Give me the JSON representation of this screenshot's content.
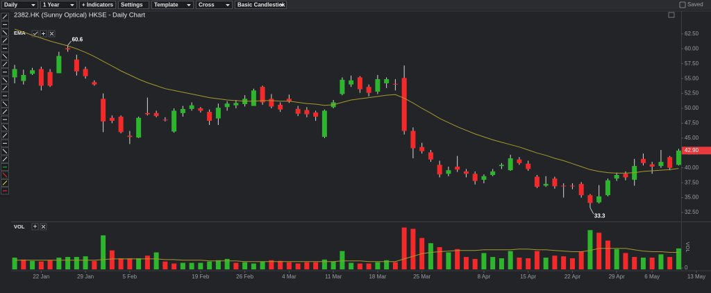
{
  "toolbar": {
    "buttons": [
      "Daily",
      "1 Year",
      "+ Indicators",
      "Settings",
      "Template",
      "Cross",
      "Basic Candlestick"
    ],
    "status": "Saved"
  },
  "chart_data": {
    "type": "candlestick",
    "title": "2382.HK (Sunny Optical) HKSE - Daily Chart",
    "up_color": "#2db52d",
    "down_color": "#f42a2a",
    "xlim": [
      -0.4,
      75.2
    ],
    "xticks": [
      {
        "value": 3,
        "label": "22 Jan"
      },
      {
        "value": 8,
        "label": "29 Jan"
      },
      {
        "value": 13,
        "label": "5 Feb"
      },
      {
        "value": 21,
        "label": "19 Feb"
      },
      {
        "value": 26,
        "label": "26 Feb"
      },
      {
        "value": 31,
        "label": "4 Mar"
      },
      {
        "value": 36,
        "label": "11 Mar"
      },
      {
        "value": 41,
        "label": "18 Mar"
      },
      {
        "value": 46,
        "label": "25 Mar"
      },
      {
        "value": 53,
        "label": "8 Apr"
      },
      {
        "value": 58,
        "label": "15 Apr"
      },
      {
        "value": 63,
        "label": "22 Apr"
      },
      {
        "value": 68,
        "label": "29 Apr"
      },
      {
        "value": 72,
        "label": "6 May"
      },
      {
        "value": 77,
        "label": "13 May"
      }
    ],
    "ylim": [
      31.1,
      64.7
    ],
    "yticks": [
      {
        "value": 32.5,
        "label": "32.50"
      },
      {
        "value": 35,
        "label": "35.00"
      },
      {
        "value": 37.5,
        "label": "37.50"
      },
      {
        "value": 40,
        "label": "40.00"
      },
      {
        "value": 42.5,
        "label": "42.50"
      },
      {
        "value": 45,
        "label": "45.00"
      },
      {
        "value": 47.5,
        "label": "47.50"
      },
      {
        "value": 50,
        "label": "50.00"
      },
      {
        "value": 52.5,
        "label": "52.50"
      },
      {
        "value": 55,
        "label": "55.00"
      },
      {
        "value": 57.5,
        "label": "57.50"
      },
      {
        "value": 60,
        "label": "60.00"
      },
      {
        "value": 62.5,
        "label": "62.50"
      }
    ],
    "open": [
      55.2,
      54.6,
      55.8,
      56.6,
      56.1,
      55.9,
      60.1,
      58.2,
      56.6,
      54.4,
      51.6,
      48.4,
      48.6,
      45.4,
      45.1,
      49.2,
      49.2,
      48.1,
      46.1,
      49.2,
      49.9,
      50.0,
      49.4,
      48.3,
      50.2,
      50.5,
      50.7,
      50.4,
      53.6,
      51.6,
      50.6,
      51.6,
      49.9,
      49.7,
      49.3,
      45.2,
      50.2,
      52.4,
      54.0,
      55.2,
      53.6,
      52.8,
      54.2,
      54.1,
      55.1,
      46.2,
      43.5,
      42.6,
      40.5,
      39.0,
      40.2,
      39.4,
      39.0,
      38.0,
      38.8,
      40.3,
      39.6,
      41.4,
      40.7,
      38.5,
      37.0,
      38.2,
      37.0,
      37.0,
      37.3,
      35.4,
      34.2,
      35.4,
      38.2,
      39.0,
      38.0,
      41.5,
      40.6,
      40.3,
      41.8,
      40.5
    ],
    "high": [
      57.3,
      56.5,
      56.8,
      57.0,
      56.6,
      59.5,
      60.6,
      59.0,
      57.0,
      54.7,
      52.5,
      48.8,
      48.8,
      46.2,
      48.6,
      51.8,
      49.6,
      48.5,
      50.0,
      50.4,
      51.0,
      50.2,
      49.8,
      50.8,
      51.2,
      51.4,
      52.2,
      53.3,
      53.8,
      52.4,
      51.0,
      52.3,
      50.4,
      50.2,
      49.6,
      49.8,
      51.4,
      55.2,
      55.5,
      55.4,
      54.0,
      55.6,
      55.2,
      54.9,
      57.2,
      46.8,
      44.2,
      43.0,
      41.2,
      40.2,
      42.0,
      39.8,
      39.4,
      38.9,
      39.8,
      40.8,
      42.2,
      41.8,
      41.2,
      38.8,
      38.6,
      38.5,
      37.4,
      37.4,
      37.6,
      35.6,
      37.1,
      38.2,
      39.2,
      39.4,
      41.5,
      42.4,
      41.0,
      43.0,
      42.0,
      43.2
    ],
    "low": [
      54.2,
      54.0,
      55.6,
      53.0,
      53.6,
      55.9,
      59.5,
      55.5,
      55.0,
      53.8,
      46.0,
      47.5,
      45.8,
      44.0,
      45.0,
      48.8,
      48.5,
      47.8,
      45.9,
      48.6,
      49.6,
      49.3,
      47.2,
      47.2,
      49.6,
      50.0,
      50.3,
      50.4,
      50.6,
      50.0,
      49.4,
      50.9,
      48.7,
      48.5,
      47.9,
      45.0,
      50.0,
      52.2,
      53.6,
      52.6,
      52.0,
      52.4,
      53.4,
      53.0,
      45.6,
      41.6,
      42.4,
      41.0,
      38.4,
      38.6,
      39.3,
      38.4,
      37.2,
      37.4,
      38.6,
      39.8,
      39.5,
      40.5,
      39.5,
      36.6,
      36.8,
      36.5,
      35.0,
      36.4,
      35.0,
      33.3,
      34.0,
      35.2,
      37.8,
      37.9,
      37.0,
      40.4,
      39.0,
      40.0,
      39.6,
      40.4
    ],
    "close": [
      56.6,
      55.6,
      56.4,
      53.8,
      53.8,
      58.8,
      59.9,
      56.2,
      55.4,
      54.0,
      47.8,
      47.9,
      46.0,
      45.2,
      48.4,
      49.0,
      48.7,
      48.0,
      49.6,
      49.9,
      50.5,
      49.6,
      47.9,
      50.1,
      50.8,
      50.9,
      51.6,
      53.0,
      51.0,
      50.3,
      49.8,
      51.2,
      49.1,
      49.0,
      48.6,
      49.6,
      51.0,
      54.8,
      54.7,
      53.2,
      52.6,
      54.9,
      54.9,
      54.0,
      46.2,
      43.3,
      42.8,
      41.4,
      38.9,
      39.6,
      39.7,
      39.0,
      37.8,
      38.6,
      39.4,
      40.5,
      41.6,
      40.8,
      39.8,
      36.8,
      37.3,
      36.9,
      36.9,
      36.9,
      35.4,
      34.1,
      35.2,
      37.9,
      38.8,
      38.4,
      40.3,
      40.8,
      40.2,
      41.0,
      40.0,
      42.9
    ],
    "ema": {
      "name": "EMA",
      "color": "#a89a2c",
      "values": [
        63.3,
        62.8,
        62.3,
        61.8,
        61.3,
        60.9,
        60.5,
        60.0,
        59.4,
        58.7,
        57.9,
        57.1,
        56.3,
        55.6,
        54.9,
        54.3,
        53.8,
        53.3,
        53.0,
        52.7,
        52.4,
        52.1,
        51.8,
        51.6,
        51.4,
        51.3,
        51.2,
        51.2,
        51.3,
        51.3,
        51.2,
        51.2,
        51.0,
        50.8,
        50.7,
        50.5,
        50.6,
        51.0,
        51.4,
        51.6,
        51.8,
        52.0,
        52.2,
        52.3,
        51.7,
        50.9,
        50.0,
        49.2,
        48.3,
        47.6,
        46.9,
        46.3,
        45.7,
        45.2,
        44.7,
        44.3,
        43.9,
        43.5,
        43.0,
        42.5,
        42.1,
        41.6,
        41.2,
        40.7,
        40.2,
        39.7,
        39.4,
        39.2,
        39.1,
        39.1,
        39.2,
        39.4,
        39.5,
        39.6,
        39.7,
        39.9
      ]
    },
    "annotations": [
      {
        "index": 6,
        "value": 60.6
      },
      {
        "index": 65,
        "value": 33.3
      }
    ],
    "last_price": {
      "value": 42.9,
      "label": "42.90",
      "color": "#e8393d"
    },
    "volume": {
      "name": "VOL",
      "ylim": [
        0,
        70
      ],
      "yticks": [
        0
      ],
      "values": [
        18,
        15,
        13,
        12,
        14,
        18,
        19,
        19,
        20,
        13,
        52,
        29,
        17,
        17,
        17,
        21,
        26,
        12,
        9,
        10,
        10,
        10,
        12,
        14,
        16,
        10,
        11,
        9,
        12,
        14,
        13,
        11,
        9,
        11,
        11,
        15,
        12,
        28,
        10,
        9,
        9,
        11,
        14,
        11,
        64,
        62,
        48,
        40,
        34,
        26,
        31,
        19,
        16,
        25,
        19,
        17,
        28,
        18,
        17,
        28,
        18,
        21,
        20,
        17,
        27,
        60,
        56,
        44,
        31,
        25,
        19,
        18,
        18,
        23,
        19,
        32
      ],
      "colors": [
        "#2db52d",
        "#f42a2a",
        "#2db52d",
        "#f42a2a",
        "#f42a2a",
        "#2db52d",
        "#2db52d",
        "#2db52d",
        "#2db52d",
        "#f42a2a",
        "#2db52d",
        "#f42a2a",
        "#f42a2a",
        "#f42a2a",
        "#2db52d",
        "#f42a2a",
        "#2db52d",
        "#f42a2a",
        "#f42a2a",
        "#2db52d",
        "#2db52d",
        "#2db52d",
        "#2db52d",
        "#2db52d",
        "#2db52d",
        "#f42a2a",
        "#2db52d",
        "#2db52d",
        "#2db52d",
        "#f42a2a",
        "#f42a2a",
        "#f42a2a",
        "#f42a2a",
        "#f42a2a",
        "#f42a2a",
        "#2db52d",
        "#2db52d",
        "#2db52d",
        "#2db52d",
        "#f42a2a",
        "#f42a2a",
        "#2db52d",
        "#2db52d",
        "#f42a2a",
        "#f42a2a",
        "#f42a2a",
        "#f42a2a",
        "#2db52d",
        "#f42a2a",
        "#2db52d",
        "#f42a2a",
        "#f42a2a",
        "#f42a2a",
        "#2db52d",
        "#2db52d",
        "#2db52d",
        "#2db52d",
        "#f42a2a",
        "#f42a2a",
        "#f42a2a",
        "#2db52d",
        "#f42a2a",
        "#f42a2a",
        "#f42a2a",
        "#f42a2a",
        "#2db52d",
        "#f42a2a",
        "#f42a2a",
        "#2db52d",
        "#f42a2a",
        "#f42a2a",
        "#2db52d",
        "#f42a2a",
        "#2db52d",
        "#f42a2a",
        "#2db52d"
      ],
      "average": {
        "color": "#a89a2c",
        "values": [
          14,
          14,
          14,
          14,
          14,
          14,
          14,
          14,
          14,
          14,
          15,
          16,
          16,
          16,
          16,
          16,
          16,
          15,
          15,
          14,
          14,
          14,
          13,
          13,
          13,
          13,
          12,
          12,
          12,
          12,
          12,
          12,
          12,
          12,
          12,
          12,
          12,
          13,
          13,
          13,
          12,
          12,
          12,
          12,
          16,
          20,
          24,
          26,
          27,
          28,
          29,
          29,
          29,
          30,
          30,
          30,
          30,
          31,
          31,
          30,
          30,
          29,
          28,
          27,
          27,
          29,
          32,
          32,
          32,
          32,
          30,
          28,
          27,
          27,
          26,
          26
        ]
      }
    }
  }
}
